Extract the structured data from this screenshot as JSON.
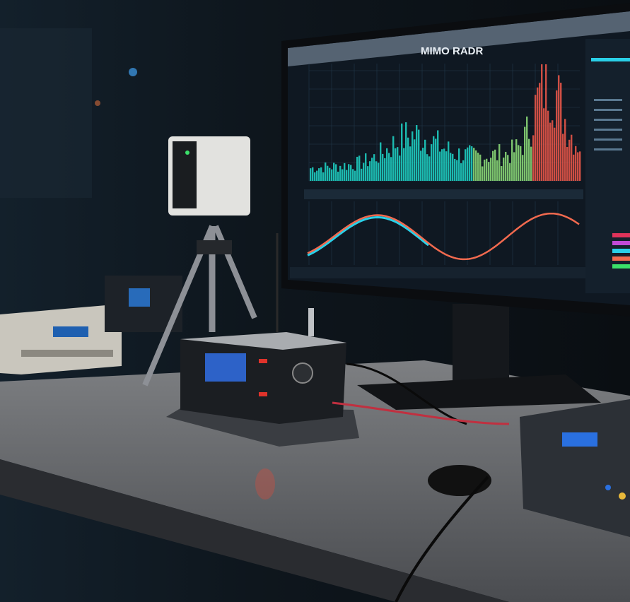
{
  "monitor": {
    "app_title": "MIMO RADR",
    "accent_colors": {
      "spectrum_low": "#1fd6c8",
      "spectrum_mid": "#8fe07a",
      "spectrum_high": "#f0584a",
      "wave_primary": "#f26a4f",
      "wave_secondary": "#2ad0e8"
    }
  },
  "scene": {
    "objects": [
      "monitor-icon",
      "radar-sensor-icon",
      "tripod-icon",
      "sdr-board-icon",
      "bench-instrument-icon",
      "mouse-icon"
    ]
  }
}
